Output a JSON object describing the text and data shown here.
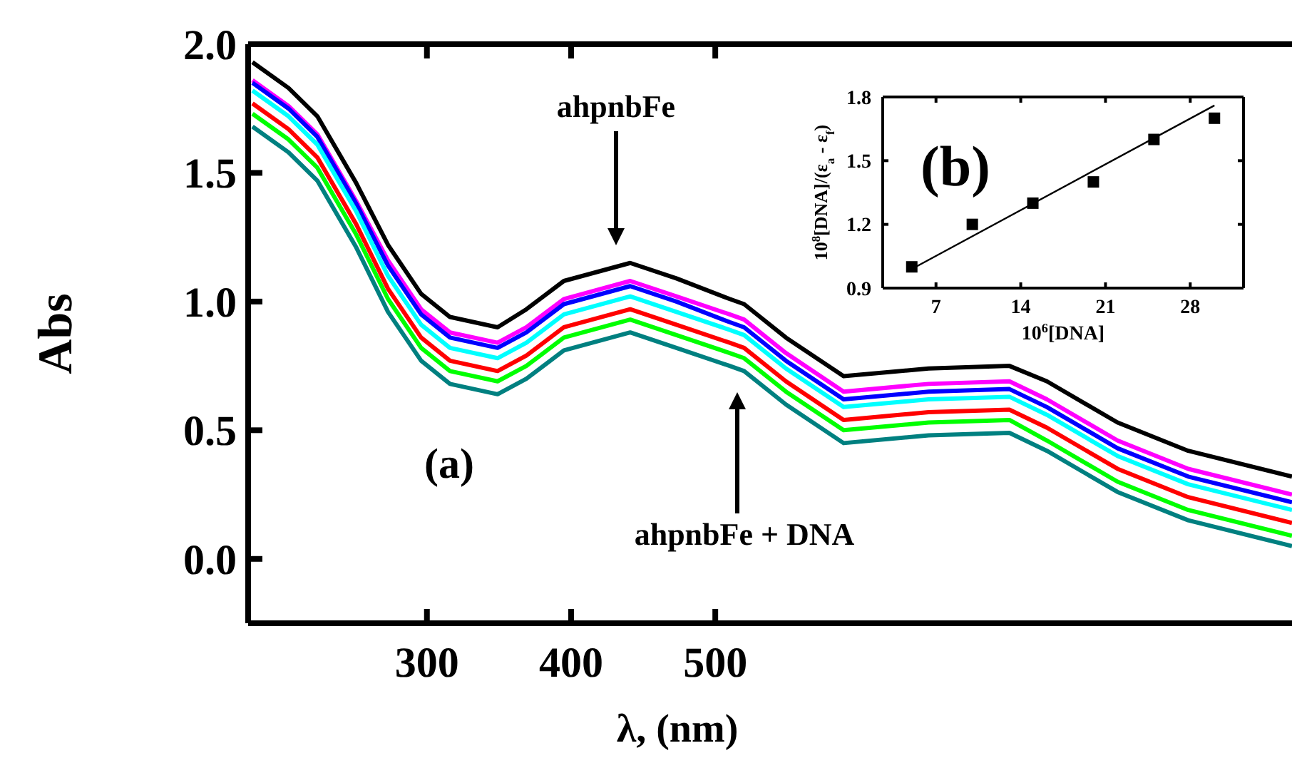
{
  "chart_data": [
    {
      "type": "line",
      "xlabel": "λ, (nm)",
      "ylabel": "Abs",
      "x": [
        179,
        204,
        224,
        251,
        273,
        296,
        316,
        349,
        369,
        395,
        441,
        473,
        510,
        520,
        549,
        589,
        648,
        704,
        730,
        779,
        828,
        900
      ],
      "series": [
        {
          "color": "#000000",
          "values": [
            1.93,
            1.83,
            1.72,
            1.46,
            1.22,
            1.03,
            0.94,
            0.9,
            0.97,
            1.08,
            1.15,
            1.09,
            1.01,
            0.99,
            0.86,
            0.71,
            0.74,
            0.75,
            0.69,
            0.53,
            0.42,
            0.32
          ]
        },
        {
          "color": "#ff00ff",
          "values": [
            1.86,
            1.76,
            1.65,
            1.39,
            1.16,
            0.97,
            0.88,
            0.84,
            0.9,
            1.01,
            1.08,
            1.02,
            0.95,
            0.93,
            0.8,
            0.65,
            0.68,
            0.69,
            0.62,
            0.46,
            0.35,
            0.25
          ]
        },
        {
          "color": "#0000ff",
          "values": [
            1.85,
            1.75,
            1.64,
            1.38,
            1.14,
            0.95,
            0.86,
            0.82,
            0.88,
            0.99,
            1.06,
            1.0,
            0.92,
            0.9,
            0.77,
            0.62,
            0.65,
            0.66,
            0.59,
            0.43,
            0.32,
            0.22
          ]
        },
        {
          "color": "#00ffff",
          "values": [
            1.82,
            1.72,
            1.61,
            1.35,
            1.1,
            0.91,
            0.82,
            0.78,
            0.84,
            0.95,
            1.02,
            0.96,
            0.89,
            0.87,
            0.74,
            0.59,
            0.62,
            0.63,
            0.56,
            0.4,
            0.29,
            0.19
          ]
        },
        {
          "color": "#ff0000",
          "values": [
            1.77,
            1.67,
            1.56,
            1.3,
            1.05,
            0.86,
            0.77,
            0.73,
            0.79,
            0.9,
            0.97,
            0.91,
            0.84,
            0.82,
            0.69,
            0.54,
            0.57,
            0.58,
            0.51,
            0.35,
            0.24,
            0.14
          ]
        },
        {
          "color": "#00ff00",
          "values": [
            1.73,
            1.63,
            1.52,
            1.26,
            1.01,
            0.82,
            0.73,
            0.69,
            0.75,
            0.86,
            0.93,
            0.87,
            0.8,
            0.78,
            0.65,
            0.5,
            0.53,
            0.54,
            0.46,
            0.3,
            0.19,
            0.09
          ]
        },
        {
          "color": "#008080",
          "values": [
            1.68,
            1.58,
            1.47,
            1.21,
            0.96,
            0.77,
            0.68,
            0.64,
            0.7,
            0.81,
            0.88,
            0.82,
            0.75,
            0.73,
            0.6,
            0.45,
            0.48,
            0.49,
            0.42,
            0.26,
            0.15,
            0.05
          ]
        }
      ],
      "xlim": [
        176,
        900
      ],
      "xticks": [
        300,
        400,
        500
      ],
      "ylim": [
        -0.25,
        2.0
      ],
      "yticks": [
        {
          "value": 0,
          "label": "0.0"
        },
        0.5,
        {
          "value": 1,
          "label": "1.0"
        },
        1.5,
        {
          "value": 2,
          "label": "2.0"
        }
      ],
      "grid": false,
      "marker": "none",
      "line_style": "solid",
      "annotations": [
        "ahpnbFe",
        "ahpnbFe + DNA",
        "(a)"
      ]
    },
    {
      "type": "scatter",
      "xlabel": "10$^{6}$[DNA]",
      "ylabel": "10$^{8}$[DNA]/(ε$_{a}$ - ε$_{f}$)",
      "xlim": [
        2.6,
        32.4
      ],
      "xticks": [
        7,
        14,
        21,
        28
      ],
      "ylim": [
        0.9,
        1.8
      ],
      "yticks": [
        0.9,
        1.2,
        1.5,
        1.8
      ],
      "grid": false,
      "series": [
        {
          "marker": "square",
          "color": "#000000",
          "x": [
            5,
            10,
            15,
            20,
            25,
            30
          ],
          "values": [
            1.0,
            1.2,
            1.3,
            1.4,
            1.6,
            1.7
          ]
        },
        {
          "type": "line",
          "marker": "none",
          "color": "#000000",
          "x": [
            5,
            30
          ],
          "values": [
            0.99,
            1.76
          ]
        }
      ],
      "annotations": [
        "(b)"
      ]
    }
  ]
}
